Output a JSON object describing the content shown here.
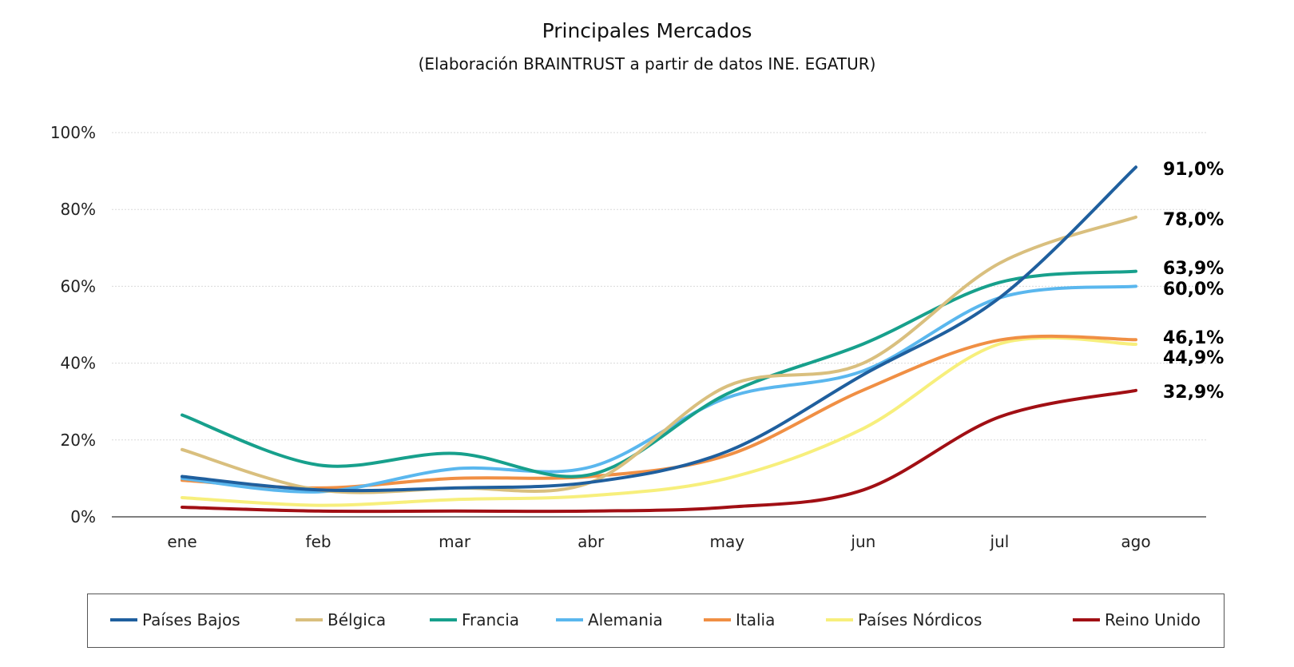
{
  "chart_data": {
    "type": "line",
    "title": "Principales Mercados",
    "subtitle": "(Elaboración BRAINTRUST a partir de datos INE. EGATUR)",
    "categories": [
      "ene",
      "feb",
      "mar",
      "abr",
      "may",
      "jun",
      "jul",
      "ago"
    ],
    "y_ticks": [
      "0%",
      "20%",
      "40%",
      "60%",
      "80%",
      "100%"
    ],
    "ylim": [
      0,
      100
    ],
    "grid": true,
    "legend_position": "bottom",
    "series": [
      {
        "name": "Países Bajos",
        "color": "#1f5f9e",
        "values": [
          10.5,
          7.0,
          7.5,
          9.0,
          17.0,
          37.0,
          57.0,
          91.0
        ],
        "end_label": "91,0%"
      },
      {
        "name": "Bélgica",
        "color": "#d9bf7e",
        "values": [
          17.5,
          7.0,
          7.5,
          9.0,
          34.0,
          40.0,
          66.0,
          78.0
        ],
        "end_label": "78,0%"
      },
      {
        "name": "Francia",
        "color": "#17a08c",
        "values": [
          26.5,
          13.5,
          16.5,
          11.0,
          32.0,
          45.0,
          61.0,
          63.9
        ],
        "end_label": "63,9%"
      },
      {
        "name": "Alemania",
        "color": "#5ab7ee",
        "values": [
          10.0,
          6.5,
          12.5,
          13.0,
          31.0,
          38.0,
          57.0,
          60.0
        ],
        "end_label": "60,0%"
      },
      {
        "name": "Italia",
        "color": "#f08f44",
        "values": [
          9.5,
          7.5,
          10.0,
          10.5,
          16.0,
          33.0,
          46.0,
          46.1
        ],
        "end_label": "46,1%"
      },
      {
        "name": "Países Nórdicos",
        "color": "#f7ef7c",
        "values": [
          5.0,
          3.0,
          4.5,
          5.5,
          10.0,
          23.0,
          45.0,
          44.9
        ],
        "end_label": "44,9%"
      },
      {
        "name": "Reino Unido",
        "color": "#a10f14",
        "values": [
          2.5,
          1.5,
          1.5,
          1.5,
          2.5,
          7.0,
          26.0,
          32.9
        ],
        "end_label": "32,9%"
      }
    ]
  }
}
